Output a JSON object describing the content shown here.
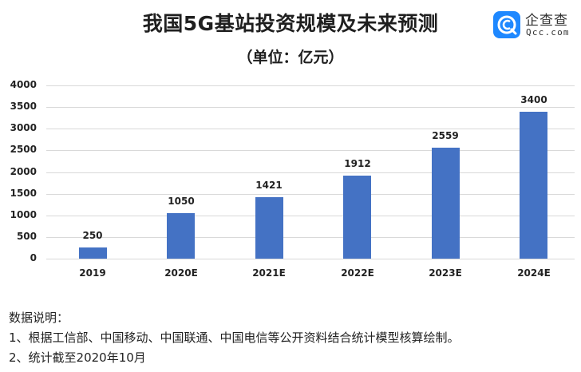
{
  "header": {
    "title": "我国5G基站投资规模及未来预测",
    "subtitle": "（单位：亿元）"
  },
  "logo": {
    "name_cn": "企查查",
    "name_en": "Qcc.com",
    "brand_color": "#1e88ff"
  },
  "notes": {
    "heading": "数据说明：",
    "items": [
      "1、根据工信部、中国移动、中国联通、中国电信等公开资料结合统计模型核算绘制。",
      "2、统计截至2020年10月"
    ]
  },
  "chart_data": {
    "type": "bar",
    "title": "我国5G基站投资规模及未来预测",
    "subtitle": "（单位：亿元）",
    "xlabel": "",
    "ylabel": "亿元",
    "categories": [
      "2019",
      "2020E",
      "2021E",
      "2022E",
      "2023E",
      "2024E"
    ],
    "values": [
      250,
      1050,
      1421,
      1912,
      2559,
      3400
    ],
    "data_labels": [
      "250",
      "1050",
      "1421",
      "1912",
      "2559",
      "3400"
    ],
    "ylim": [
      0,
      4000
    ],
    "yticks": [
      "0",
      "500",
      "1000",
      "1500",
      "2000",
      "2500",
      "3000",
      "3500",
      "4000"
    ],
    "grid": true,
    "legend": "none",
    "bar_color": "#4472c4"
  }
}
